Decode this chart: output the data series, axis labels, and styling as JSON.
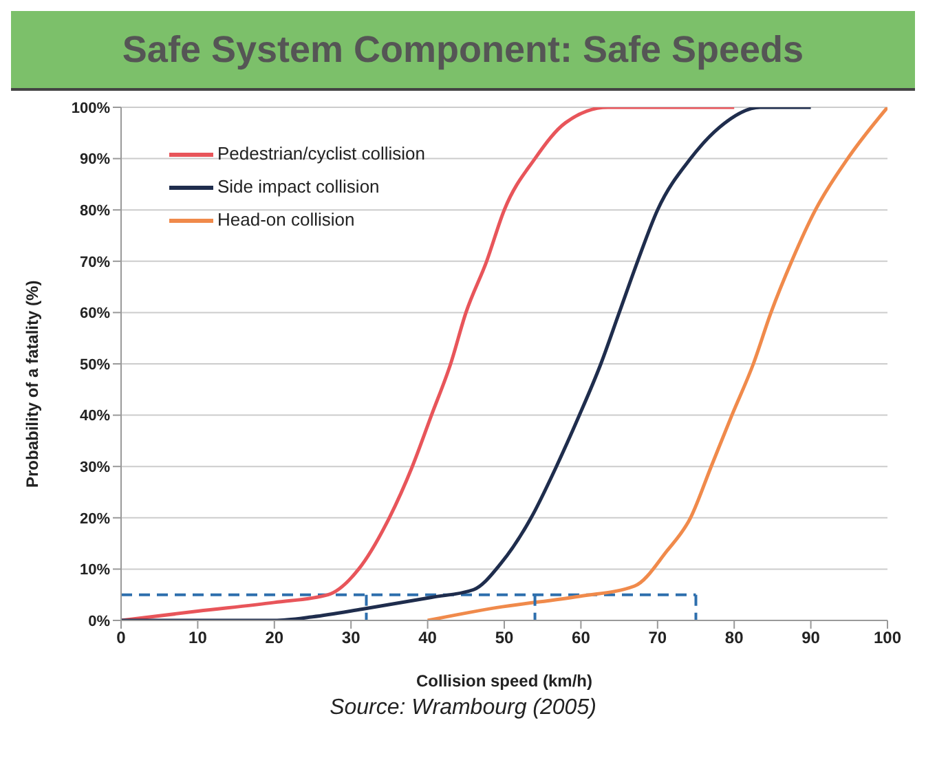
{
  "chart_data": {
    "type": "line",
    "title": "Safe System Component: Safe Speeds",
    "xlabel": "Collision speed (km/h)",
    "ylabel": "Probability of a fatality (%)",
    "annotations": [
      "Source: Wrambourg (2005)"
    ],
    "xlim": [
      0,
      100
    ],
    "xticks": [
      0,
      10,
      20,
      30,
      40,
      50,
      60,
      70,
      80,
      90,
      100
    ],
    "ylim": [
      0,
      100
    ],
    "yticks": [
      {
        "value": 0,
        "label": "0%"
      },
      {
        "value": 10,
        "label": "10%"
      },
      {
        "value": 20,
        "label": "20%"
      },
      {
        "value": 30,
        "label": "30%"
      },
      {
        "value": 40,
        "label": "40%"
      },
      {
        "value": 50,
        "label": "50%"
      },
      {
        "value": 60,
        "label": "60%"
      },
      {
        "value": 70,
        "label": "70%"
      },
      {
        "value": 80,
        "label": "80%"
      },
      {
        "value": 90,
        "label": "90%"
      },
      {
        "value": 100,
        "label": "100%"
      }
    ],
    "grid": "y",
    "legend": "top left",
    "marker": "none",
    "line_style": "solid",
    "series": [
      {
        "name": "Pedestrian/cyclist collision",
        "color": "#e8555a",
        "x": [
          0,
          10,
          20,
          27,
          31,
          35,
          38,
          40.5,
          43,
          45,
          47.7,
          50,
          54,
          58,
          63.5,
          80
        ],
        "values": [
          0,
          1.8,
          3.5,
          5,
          10,
          20,
          30,
          40,
          50,
          60,
          70,
          80,
          90,
          97,
          100,
          100
        ]
      },
      {
        "name": "Side impact collision",
        "color": "#1f2d4d",
        "x": [
          0,
          20,
          25,
          31.5,
          40.5,
          46,
          49.5,
          53.5,
          56.8,
          59.8,
          62.6,
          65,
          67.4,
          70,
          74.3,
          78,
          83.4,
          90
        ],
        "values": [
          0,
          0,
          0.7,
          2.2,
          4.5,
          6,
          11,
          20,
          30,
          40,
          50,
          60,
          70,
          80,
          90,
          96,
          100,
          100
        ]
      },
      {
        "name": "Head-on collision",
        "color": "#f08a4b",
        "x": [
          40,
          49,
          59.8,
          67,
          71.2,
          74.3,
          77,
          79.7,
          82.5,
          84.8,
          87.5,
          90.6,
          94.8,
          100
        ],
        "values": [
          0,
          2.5,
          4.7,
          6.7,
          13.5,
          20,
          30,
          40,
          50,
          60,
          70,
          80,
          90,
          100
        ]
      },
      {
        "color": "#2e6fad",
        "line_style": "dashed",
        "x": [
          32,
          32
        ],
        "values": [
          5,
          0
        ]
      },
      {
        "color": "#2e6fad",
        "line_style": "dashed",
        "x": [
          54,
          54
        ],
        "values": [
          5,
          0
        ]
      },
      {
        "color": "#2e6fad",
        "line_style": "dashed",
        "x": [
          75,
          75
        ],
        "values": [
          5,
          0
        ]
      }
    ],
    "ref_lines": [
      {
        "axis": "y",
        "value": 5,
        "color": "#2e6fad",
        "line_style": "dashed"
      }
    ]
  }
}
